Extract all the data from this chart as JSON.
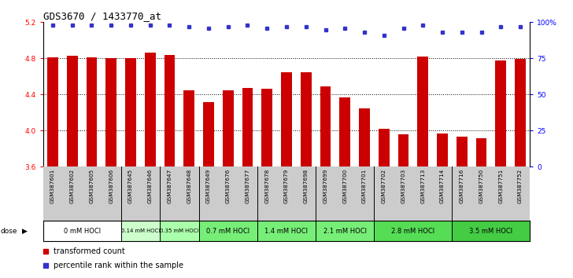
{
  "title": "GDS3670 / 1433770_at",
  "samples": [
    "GSM387601",
    "GSM387602",
    "GSM387605",
    "GSM387606",
    "GSM387645",
    "GSM387646",
    "GSM387647",
    "GSM387648",
    "GSM387649",
    "GSM387676",
    "GSM387677",
    "GSM387678",
    "GSM387679",
    "GSM387698",
    "GSM387699",
    "GSM387700",
    "GSM387701",
    "GSM387702",
    "GSM387703",
    "GSM387713",
    "GSM387714",
    "GSM387716",
    "GSM387750",
    "GSM387751",
    "GSM387752"
  ],
  "bar_values": [
    4.81,
    4.83,
    4.81,
    4.8,
    4.8,
    4.86,
    4.84,
    4.45,
    4.32,
    4.45,
    4.47,
    4.46,
    4.65,
    4.65,
    4.49,
    4.37,
    4.25,
    4.02,
    3.96,
    4.82,
    3.97,
    3.93,
    3.92,
    4.78,
    4.79
  ],
  "percentile_values": [
    98,
    98,
    98,
    98,
    98,
    98,
    98,
    97,
    96,
    97,
    98,
    96,
    97,
    97,
    95,
    96,
    93,
    91,
    96,
    98,
    93,
    93,
    93,
    97,
    97
  ],
  "ylim_left": [
    3.6,
    5.2
  ],
  "ylim_right": [
    0,
    100
  ],
  "yticks_left": [
    3.6,
    4.0,
    4.4,
    4.8,
    5.2
  ],
  "yticks_right": [
    0,
    25,
    50,
    75,
    100
  ],
  "ytick_labels_right": [
    "0",
    "25",
    "50",
    "75",
    "100%"
  ],
  "bar_color": "#cc0000",
  "dot_color": "#3333cc",
  "dose_groups": [
    {
      "label": "0 mM HOCl",
      "start": 0,
      "end": 4,
      "color": "#ffffff"
    },
    {
      "label": "0.14 mM HOCl",
      "start": 4,
      "end": 6,
      "color": "#ccffcc"
    },
    {
      "label": "0.35 mM HOCl",
      "start": 6,
      "end": 8,
      "color": "#aaffaa"
    },
    {
      "label": "0.7 mM HOCl",
      "start": 8,
      "end": 11,
      "color": "#77ee77"
    },
    {
      "label": "1.4 mM HOCl",
      "start": 11,
      "end": 14,
      "color": "#77ee77"
    },
    {
      "label": "2.1 mM HOCl",
      "start": 14,
      "end": 17,
      "color": "#77ee77"
    },
    {
      "label": "2.8 mM HOCl",
      "start": 17,
      "end": 21,
      "color": "#55dd55"
    },
    {
      "label": "3.5 mM HOCl",
      "start": 21,
      "end": 25,
      "color": "#44cc44"
    }
  ],
  "legend_bar_label": "transformed count",
  "legend_dot_label": "percentile rank within the sample",
  "bar_width": 0.55,
  "title_fontsize": 9,
  "tick_fontsize": 6.5,
  "sample_fontsize": 5.2,
  "dose_fontsize": 6.0,
  "legend_fontsize": 7
}
